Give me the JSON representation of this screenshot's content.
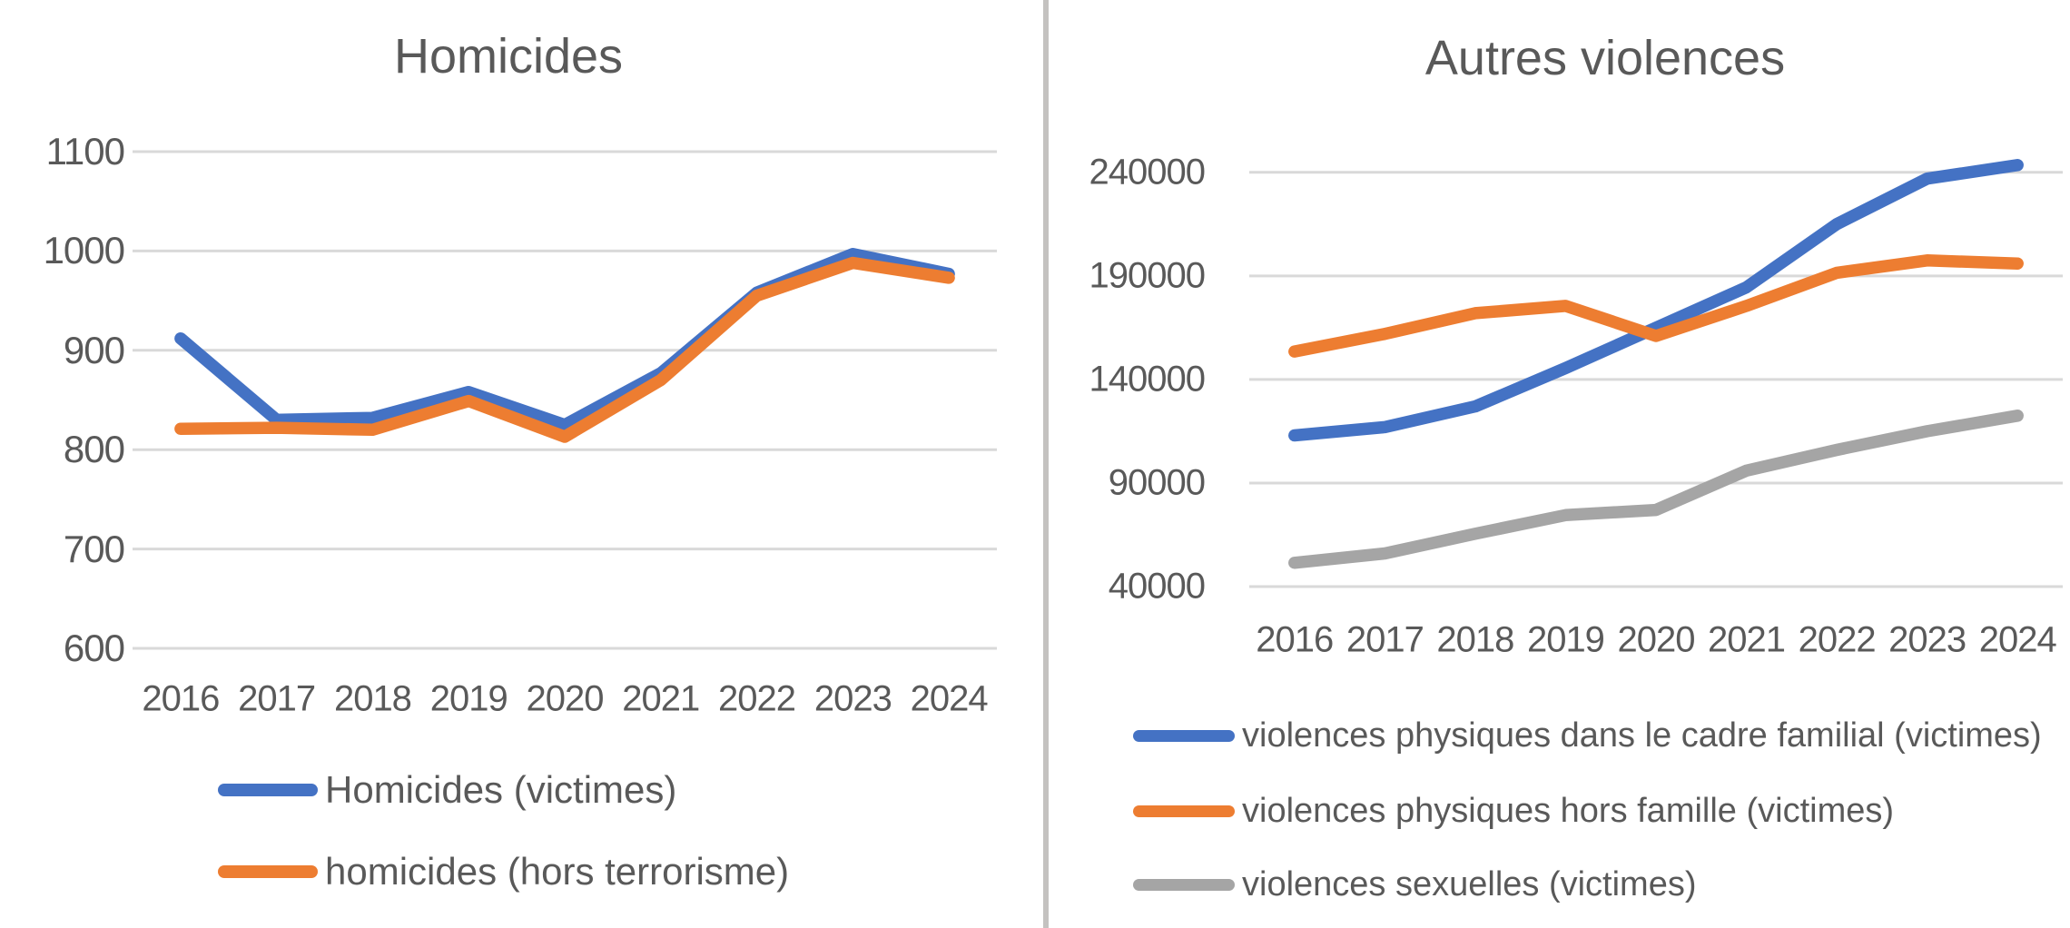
{
  "colors": {
    "background": "#FFFFFF",
    "gridline": "#D9D9D9",
    "axis_text": "#595959",
    "title_text": "#595959",
    "divider": "#C4C2C0",
    "series_blue": "#4472C4",
    "series_orange": "#ED7D31",
    "series_gray": "#A5A5A5"
  },
  "chart_data": [
    {
      "type": "line",
      "title": "Homicides",
      "categories": [
        "2016",
        "2017",
        "2018",
        "2019",
        "2020",
        "2021",
        "2022",
        "2023",
        "2024"
      ],
      "series": [
        {
          "name": "Homicides (victimes)",
          "color": "#4472C4",
          "values": [
            912,
            830,
            832,
            858,
            825,
            877,
            958,
            997,
            977
          ]
        },
        {
          "name": "homicides (hors terrorisme)",
          "color": "#ED7D31",
          "values": [
            821,
            822,
            820,
            849,
            813,
            870,
            955,
            988,
            973
          ]
        }
      ],
      "xlabel": "",
      "ylabel": "",
      "y_axis": {
        "min": 600,
        "max": 1100,
        "gridline_step": 100,
        "tick_labels": [
          600,
          700,
          800,
          900,
          1000,
          1100
        ]
      },
      "grid": true,
      "legend_position": "bottom"
    },
    {
      "type": "line",
      "title": "Autres violences",
      "categories": [
        "2016",
        "2017",
        "2018",
        "2019",
        "2020",
        "2021",
        "2022",
        "2023",
        "2024"
      ],
      "series": [
        {
          "name": "violences physiques dans le cadre familial (victimes)",
          "color": "#4472C4",
          "values": [
            113000,
            117000,
            127000,
            145500,
            165000,
            184500,
            215000,
            237000,
            243500
          ]
        },
        {
          "name": "violences physiques hors famille (victimes)",
          "color": "#ED7D31",
          "values": [
            153500,
            162000,
            172000,
            175500,
            161000,
            175500,
            191500,
            197500,
            196000
          ]
        },
        {
          "name": "violences sexuelles (victimes)",
          "color": "#A5A5A5",
          "values": [
            51500,
            56000,
            65500,
            74500,
            77000,
            96000,
            106000,
            115000,
            122500
          ]
        }
      ],
      "xlabel": "",
      "ylabel": "",
      "y_axis": {
        "min": 40000,
        "max": 250000,
        "gridline_step": 50000,
        "tick_labels": [
          40000,
          90000,
          140000,
          190000,
          240000
        ]
      },
      "grid": true,
      "legend_position": "bottom"
    }
  ]
}
